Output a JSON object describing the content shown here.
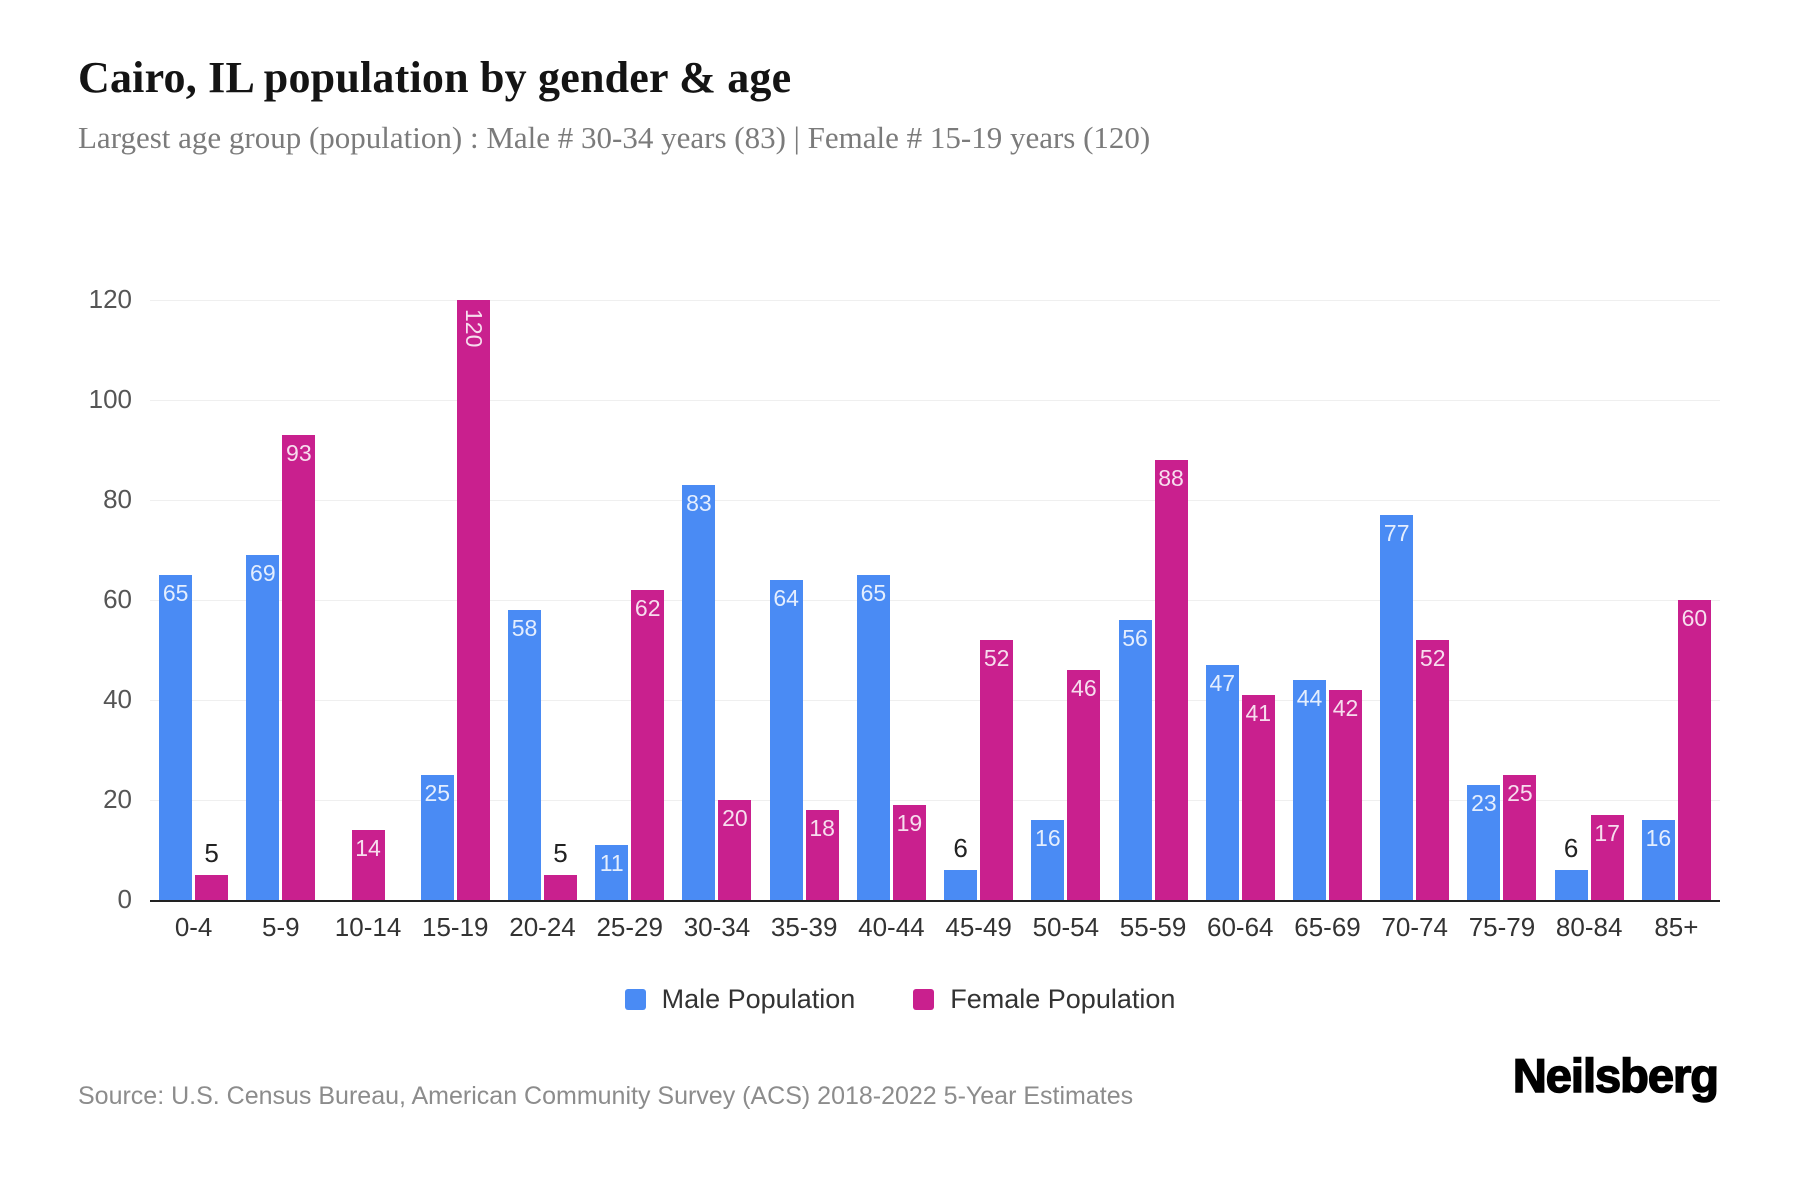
{
  "header": {
    "title": "Cairo, IL population by gender & age",
    "subtitle": "Largest age group (population) : Male # 30-34 years (83) | Female # 15-19 years (120)"
  },
  "chart_data": {
    "type": "bar",
    "categories": [
      "0-4",
      "5-9",
      "10-14",
      "15-19",
      "20-24",
      "25-29",
      "30-34",
      "35-39",
      "40-44",
      "45-49",
      "50-54",
      "55-59",
      "60-64",
      "65-69",
      "70-74",
      "75-79",
      "80-84",
      "85+"
    ],
    "series": [
      {
        "name": "Male Population",
        "color": "#4a8bf4",
        "values": [
          65,
          69,
          0,
          25,
          58,
          11,
          83,
          64,
          65,
          6,
          16,
          56,
          47,
          44,
          77,
          23,
          6,
          16
        ]
      },
      {
        "name": "Female Population",
        "color": "#c9208e",
        "values": [
          5,
          93,
          14,
          120,
          5,
          62,
          20,
          18,
          19,
          52,
          46,
          88,
          41,
          42,
          52,
          25,
          17,
          60
        ]
      }
    ],
    "title": "Cairo, IL population by gender & age",
    "xlabel": "",
    "ylabel": "",
    "ylim": [
      0,
      120
    ],
    "yticks": [
      0,
      20,
      40,
      60,
      80,
      100,
      120
    ],
    "grid": true,
    "legend_position": "bottom",
    "label_rule": "values below 10 shown above bar in dark text; 10+ inside bar top in white; 100+ rotated vertical"
  },
  "colors": {
    "male": "#4a8bf4",
    "female": "#c9208e",
    "axis_line": "#222222",
    "gridline": "#efefef",
    "tick_text": "#555555"
  },
  "footer": {
    "source": "Source: U.S. Census Bureau, American Community Survey (ACS) 2018-2022 5-Year Estimates",
    "brand": "Neilsberg"
  }
}
